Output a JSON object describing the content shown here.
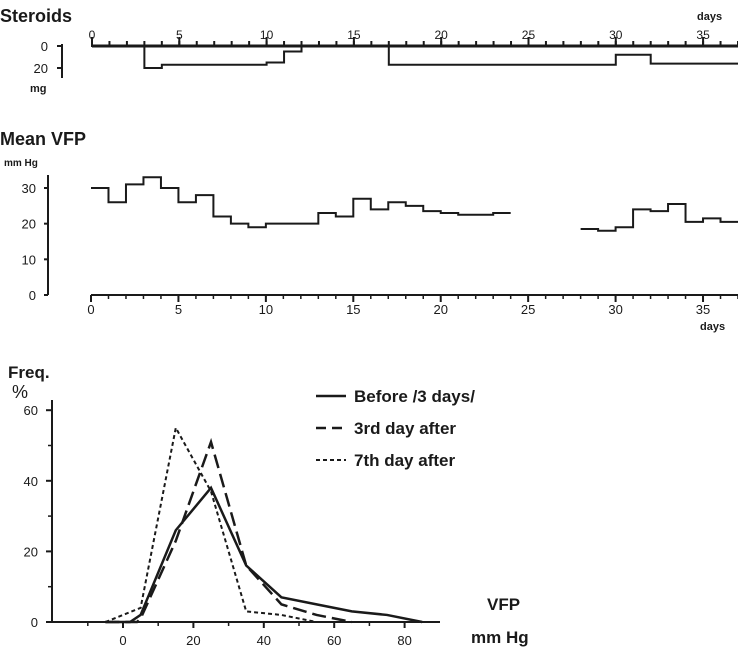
{
  "chart_data": [
    {
      "type": "line",
      "title": "Steroids",
      "ylabel_unit": "mg",
      "xlabel": "days",
      "xlim": [
        0,
        37
      ],
      "ylim": [
        0,
        20
      ],
      "x_ticks": [
        0,
        5,
        10,
        15,
        20,
        25,
        30,
        35
      ],
      "y_ticks": [
        0,
        20
      ],
      "steps": [
        {
          "x0": 0,
          "x1": 3,
          "y": 0
        },
        {
          "x0": 3,
          "x1": 4,
          "y": 20
        },
        {
          "x0": 4,
          "x1": 10,
          "y": 17
        },
        {
          "x0": 10,
          "x1": 11,
          "y": 15
        },
        {
          "x0": 11,
          "x1": 12,
          "y": 5
        },
        {
          "x0": 12,
          "x1": 17,
          "y": 0
        },
        {
          "x0": 17,
          "x1": 30,
          "y": 17
        },
        {
          "x0": 30,
          "x1": 32,
          "y": 8
        },
        {
          "x0": 32,
          "x1": 37,
          "y": 16
        }
      ]
    },
    {
      "type": "line",
      "title": "Mean VFP",
      "ylabel_unit": "mm Hg",
      "xlabel": "days",
      "xlim": [
        0,
        37
      ],
      "ylim": [
        0,
        30
      ],
      "x_ticks": [
        0,
        5,
        10,
        15,
        20,
        25,
        30,
        35
      ],
      "y_ticks": [
        0,
        10,
        20,
        30
      ],
      "segments": [
        [
          {
            "x0": 0,
            "x1": 1,
            "y": 30
          },
          {
            "x0": 1,
            "x1": 2,
            "y": 26
          },
          {
            "x0": 2,
            "x1": 3,
            "y": 31
          },
          {
            "x0": 3,
            "x1": 4,
            "y": 33
          },
          {
            "x0": 4,
            "x1": 5,
            "y": 30
          },
          {
            "x0": 5,
            "x1": 6,
            "y": 26
          },
          {
            "x0": 6,
            "x1": 7,
            "y": 28
          },
          {
            "x0": 7,
            "x1": 8,
            "y": 22
          },
          {
            "x0": 8,
            "x1": 9,
            "y": 20
          },
          {
            "x0": 9,
            "x1": 10,
            "y": 19
          },
          {
            "x0": 10,
            "x1": 13,
            "y": 20
          },
          {
            "x0": 13,
            "x1": 14,
            "y": 23
          },
          {
            "x0": 14,
            "x1": 15,
            "y": 22
          },
          {
            "x0": 15,
            "x1": 16,
            "y": 27
          },
          {
            "x0": 16,
            "x1": 17,
            "y": 24
          },
          {
            "x0": 17,
            "x1": 18,
            "y": 26
          },
          {
            "x0": 18,
            "x1": 19,
            "y": 25
          },
          {
            "x0": 19,
            "x1": 20,
            "y": 23.5
          },
          {
            "x0": 20,
            "x1": 21,
            "y": 23
          },
          {
            "x0": 21,
            "x1": 22,
            "y": 22.5
          },
          {
            "x0": 22,
            "x1": 23,
            "y": 22.5
          },
          {
            "x0": 23,
            "x1": 24,
            "y": 23
          }
        ],
        [
          {
            "x0": 28,
            "x1": 29,
            "y": 18.5
          },
          {
            "x0": 29,
            "x1": 30,
            "y": 18
          },
          {
            "x0": 30,
            "x1": 31,
            "y": 19
          },
          {
            "x0": 31,
            "x1": 32,
            "y": 24
          },
          {
            "x0": 32,
            "x1": 33,
            "y": 23.5
          },
          {
            "x0": 33,
            "x1": 34,
            "y": 25.5
          },
          {
            "x0": 34,
            "x1": 35,
            "y": 20.5
          },
          {
            "x0": 35,
            "x1": 36,
            "y": 21.5
          },
          {
            "x0": 36,
            "x1": 37,
            "y": 20.5
          }
        ]
      ]
    },
    {
      "type": "line",
      "ylabel_top": "Freq.",
      "ylabel": "%",
      "xlabel": "VFP",
      "xunit": "mm Hg",
      "xlim": [
        -5,
        85
      ],
      "ylim": [
        0,
        65
      ],
      "x_ticks": [
        0,
        20,
        40,
        60,
        80
      ],
      "y_ticks": [
        0,
        20,
        40,
        60
      ],
      "legend_position": "top-right",
      "series": [
        {
          "name": "Before /3 days/",
          "style": "solid",
          "x": [
            -5,
            2,
            5,
            15,
            25,
            35,
            45,
            55,
            65,
            75,
            85
          ],
          "y": [
            0,
            0,
            2,
            26,
            38,
            16,
            7,
            5,
            3,
            2,
            0
          ]
        },
        {
          "name": "3rd day after",
          "style": "dashed",
          "x": [
            -5,
            4,
            5,
            15,
            25,
            35,
            45,
            55,
            65
          ],
          "y": [
            0,
            0,
            1,
            23,
            51,
            16,
            5,
            2,
            0
          ]
        },
        {
          "name": "7th day after",
          "style": "dotted",
          "x": [
            -5,
            0,
            5,
            15,
            25,
            35,
            45,
            55
          ],
          "y": [
            0,
            2,
            4,
            55,
            37,
            3,
            2,
            0
          ]
        }
      ]
    }
  ]
}
